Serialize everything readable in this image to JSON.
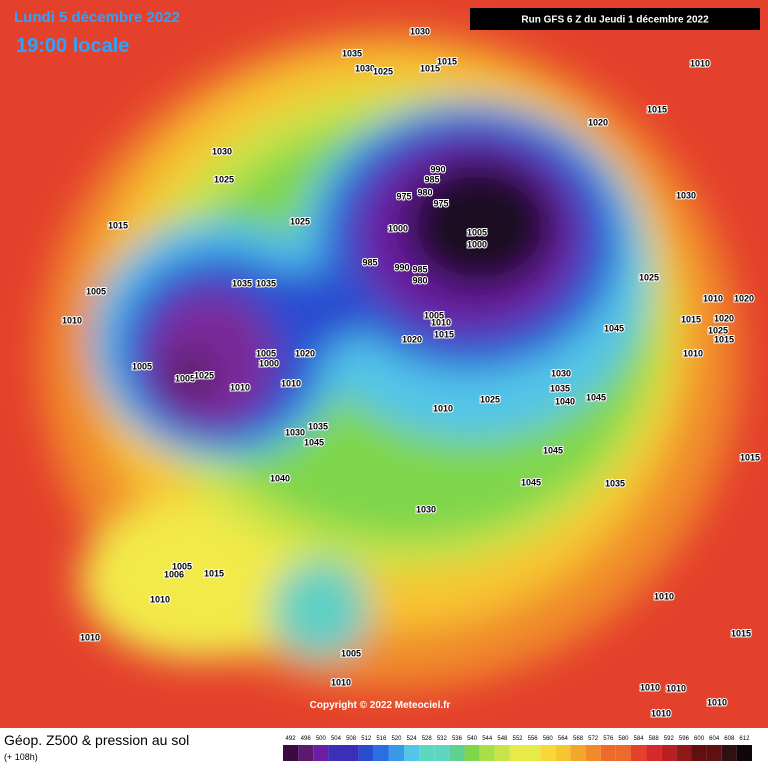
{
  "header": {
    "date": "Lundi 5 décembre 2022",
    "time": "19:00 locale",
    "run": "Run GFS 6 Z du Jeudi 1 décembre 2022"
  },
  "footer": {
    "title": "Géop. Z500 & pression au sol",
    "lead": "(+ 108h)",
    "copyright": "Copyright © 2022 Meteociel.fr"
  },
  "colorbar": {
    "ticks": [
      492,
      496,
      500,
      504,
      508,
      512,
      516,
      520,
      524,
      528,
      532,
      536,
      540,
      544,
      548,
      552,
      556,
      560,
      564,
      568,
      572,
      576,
      580,
      584,
      588,
      592,
      596,
      600,
      604,
      608,
      612
    ]
  },
  "isobar_labels": [
    1030,
    1035,
    1030,
    1025,
    1015,
    1015,
    1010,
    1015,
    1020,
    1030,
    1025,
    990,
    985,
    975,
    980,
    975,
    1030,
    1015,
    1025,
    1000,
    1005,
    1000,
    985,
    990,
    985,
    980,
    1025,
    1035,
    1035,
    1005,
    1010,
    1020,
    1010,
    1005,
    1010,
    1015,
    1020,
    1045,
    1025,
    1015,
    1020,
    1015,
    1005,
    1020,
    1000,
    1010,
    1005,
    1005,
    1025,
    1030,
    1010,
    1010,
    1035,
    1040,
    1045,
    1025,
    1010,
    1035,
    1030,
    1045,
    1045,
    1015,
    1040,
    1045,
    1035,
    1030,
    1005,
    1006,
    1015,
    1010,
    1010,
    1015,
    1010,
    1005,
    1010,
    1010,
    1010,
    1010,
    1010
  ]
}
